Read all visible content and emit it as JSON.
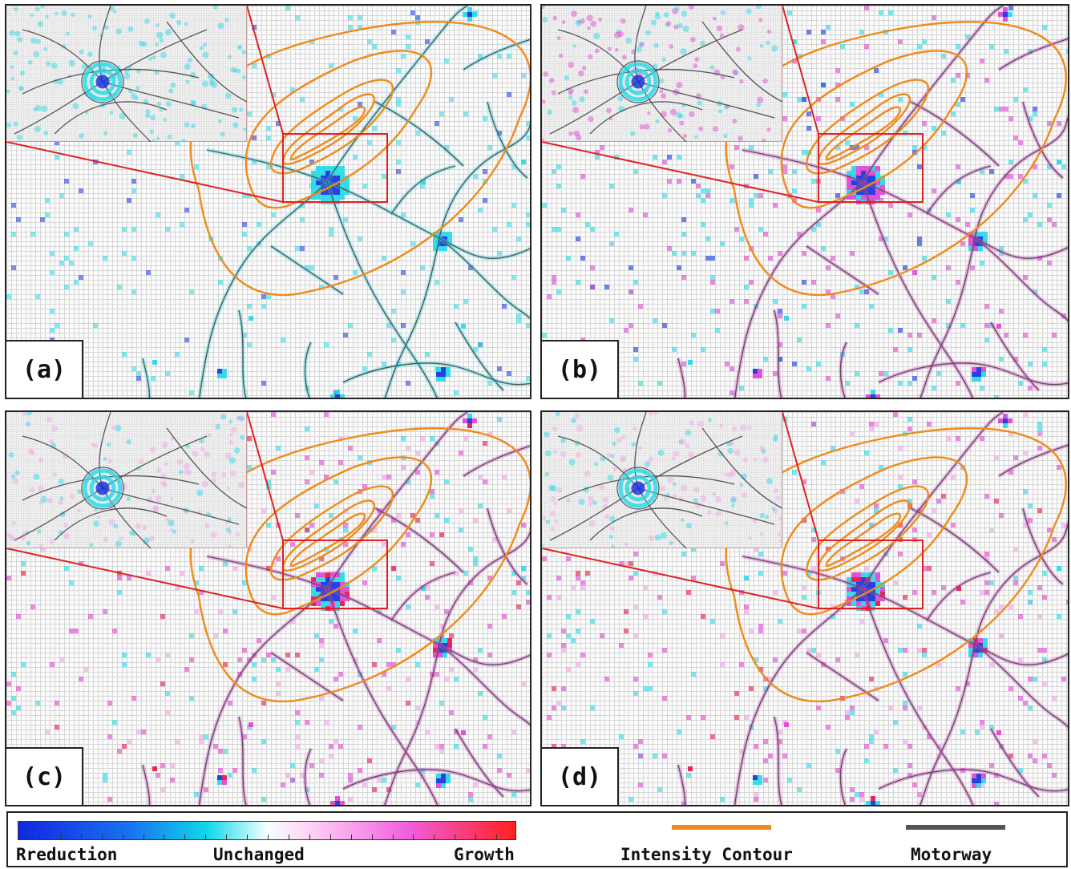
{
  "panels": [
    {
      "id": "a",
      "label": "(a)",
      "scheme": "reduction"
    },
    {
      "id": "b",
      "label": "(b)",
      "scheme": "mixed"
    },
    {
      "id": "c",
      "label": "(c)",
      "scheme": "growth"
    },
    {
      "id": "d",
      "label": "(d)",
      "scheme": "growth"
    }
  ],
  "legend": {
    "colorbar": {
      "low_label": "Rreduction",
      "mid_label": "Unchanged",
      "high_label": "Growth"
    },
    "contour_label": "Intensity Contour",
    "motorway_label": "Motorway"
  },
  "colors": {
    "contour": "#f08a1a",
    "motorway": "#555555",
    "zoom_box": "#e02020",
    "reduction_strong": "#1030e0",
    "reduction_light": "#20d8e8",
    "growth_light": "#f0a0e8",
    "growth_mid": "#e040d0",
    "growth_strong": "#e81040"
  },
  "icons": {
    "colorbar": "diverging-colorbar",
    "contour": "orange-line",
    "motorway": "grey-line"
  }
}
